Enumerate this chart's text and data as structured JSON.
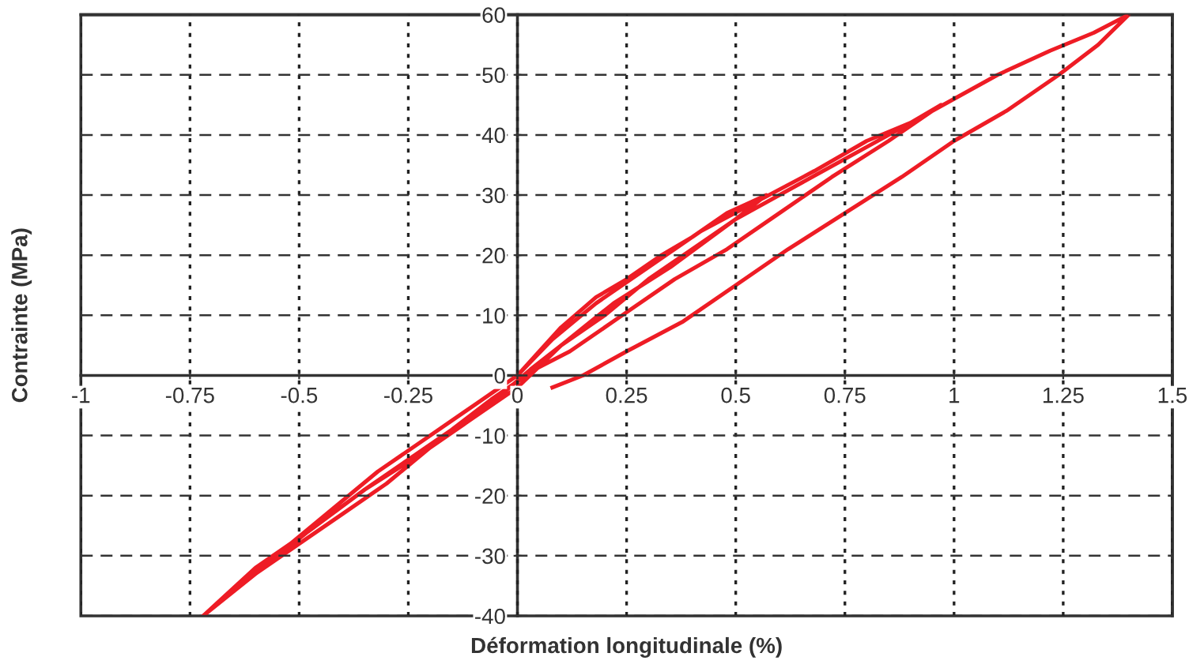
{
  "chart_data": {
    "type": "line",
    "xlabel": "Déformation longitudinale (%)",
    "ylabel": "Contrainte (MPa)",
    "series": [
      {
        "color": "#ee1c25",
        "x": [
          0,
          0.05,
          0.1,
          0.18,
          0.25,
          0.33,
          0.4,
          0.48,
          0.57,
          0.5,
          0.42,
          0.3,
          0.2,
          0.1,
          0.03,
          -0.05,
          -0.12,
          -0.2,
          -0.3,
          -0.4,
          -0.5,
          -0.6,
          -0.72,
          -0.62,
          -0.52,
          -0.42,
          -0.32,
          -0.22,
          -0.12,
          -0.04,
          0,
          0.08,
          0.18,
          0.3,
          0.42,
          0.55,
          0.68,
          0.8,
          0.9,
          0.97,
          0.85,
          0.72,
          0.6,
          0.48,
          0.36,
          0.24,
          0.12,
          0.04,
          -0.06,
          -0.15,
          -0.25,
          -0.35,
          -0.48,
          -0.6,
          -0.72,
          -0.6,
          -0.48,
          -0.35,
          -0.22,
          -0.1,
          0,
          0.1,
          0.22,
          0.35,
          0.5,
          0.65,
          0.8,
          0.95,
          1.1,
          1.22,
          1.32,
          1.4,
          1.33,
          1.24,
          1.12,
          1.0,
          0.88,
          0.75,
          0.62,
          0.5,
          0.38,
          0.25,
          0.15,
          0.08
        ],
        "values": [
          0,
          4,
          8,
          13,
          16,
          20,
          23,
          27,
          30,
          26,
          22,
          16,
          10,
          5,
          1,
          -4,
          -8,
          -12,
          -18,
          -23,
          -28,
          -33,
          -40,
          -34,
          -28,
          -22,
          -16,
          -11,
          -6,
          -2,
          0,
          6,
          12,
          18,
          24,
          29,
          34,
          39,
          42,
          45,
          39,
          33,
          27,
          21,
          16,
          10,
          4,
          1,
          -4,
          -9,
          -14,
          -19,
          -26,
          -32,
          -40,
          -33,
          -26,
          -19,
          -13,
          -7,
          -2,
          5,
          12,
          18,
          26,
          32,
          38,
          44,
          50,
          54,
          57,
          60,
          55,
          50,
          44,
          39,
          33,
          27,
          21,
          15,
          9,
          4,
          0,
          -2
        ]
      }
    ],
    "xlim": [
      -1,
      1.5
    ],
    "ylim": [
      -40,
      60
    ],
    "xticks": [
      -1,
      -0.75,
      -0.5,
      -0.25,
      0,
      0.25,
      0.5,
      0.75,
      1,
      1.25,
      1.5
    ],
    "yticks": [
      -40,
      -30,
      -20,
      -10,
      0,
      10,
      20,
      30,
      40,
      50,
      60
    ],
    "grid": true,
    "marker": "none",
    "line_style": "solid"
  }
}
